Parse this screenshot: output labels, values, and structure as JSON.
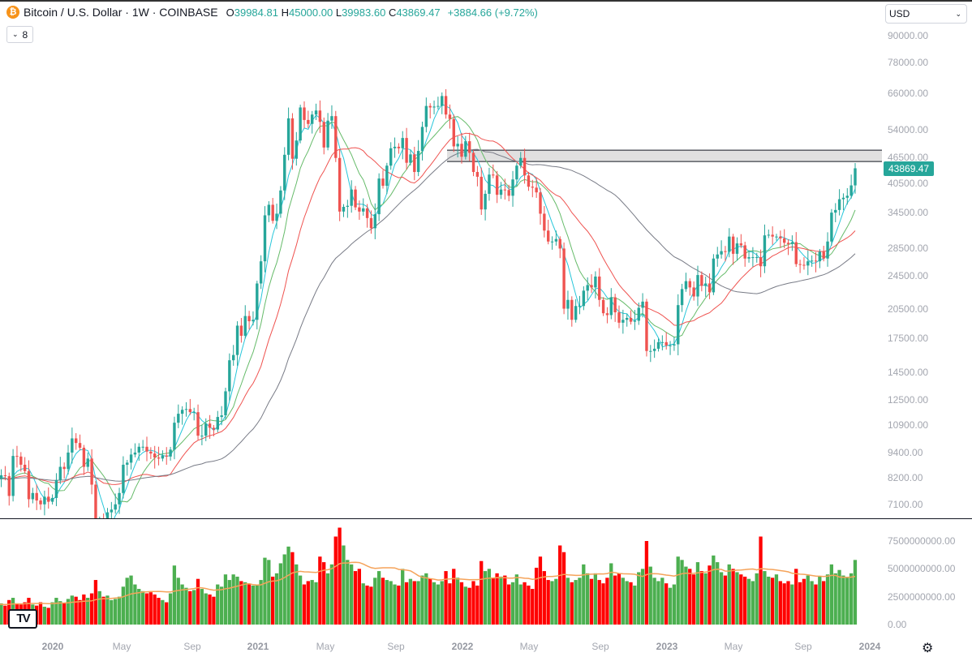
{
  "header": {
    "symbol_title": "Bitcoin / U.S. Dollar · 1W · COINBASE",
    "open_label": "O",
    "open": "39984.81",
    "high_label": "H",
    "high": "45000.00",
    "low_label": "L",
    "low": "39983.60",
    "close_label": "C",
    "close": "43869.47",
    "change": "+3884.66 (+9.72%)",
    "indicator_count": "8",
    "currency": "USD"
  },
  "colors": {
    "up": "#26a69a",
    "down": "#ef5350",
    "vol_up": "#4caf50",
    "vol_down": "#ff0000",
    "ma_colors": [
      "#26c6da",
      "#66bb6a",
      "#ef5350",
      "#787b86"
    ],
    "vol_ma": "#f5a35a",
    "accent": "#26a69a"
  },
  "chart_data": {
    "type": "candlestick",
    "title": "Bitcoin / U.S. Dollar · 1W · COINBASE",
    "scale": "log",
    "ylim": [
      7100,
      90000
    ],
    "price_ticks": [
      "90000.00",
      "78000.00",
      "66000.00",
      "54000.00",
      "46500.00",
      "40500.00",
      "34500.00",
      "28500.00",
      "24500.00",
      "20500.00",
      "17500.00",
      "14500.00",
      "12500.00",
      "10900.00",
      "9400.00",
      "8200.00",
      "7100.00"
    ],
    "last_price": "43869.47",
    "zone": {
      "low": 45500,
      "high": 48400
    },
    "first_open": 8000,
    "closes": [
      8150,
      8310,
      8270,
      7430,
      9230,
      9200,
      8800,
      8500,
      7300,
      7550,
      7250,
      7100,
      7400,
      7200,
      7350,
      8100,
      8700,
      8600,
      9400,
      10150,
      9900,
      9650,
      8700,
      9100,
      7900,
      5400,
      6400,
      6200,
      6800,
      6900,
      7100,
      7550,
      8800,
      8900,
      9300,
      9400,
      9700,
      9700,
      9450,
      9350,
      9150,
      9100,
      9250,
      9200,
      9550,
      11050,
      11600,
      11850,
      11900,
      11700,
      11700,
      10300,
      10300,
      11000,
      10750,
      10650,
      11400,
      11500,
      13100,
      15500,
      15950,
      18700,
      17700,
      19700,
      19150,
      19300,
      23500,
      26500,
      34000,
      36000,
      33000,
      34300,
      38900,
      47200,
      57500,
      46200,
      51000,
      61000,
      57000,
      55800,
      58700,
      60000,
      56400,
      49100,
      56800,
      58200,
      46400,
      34700,
      35600,
      35800,
      39100,
      35500,
      34700,
      35300,
      33500,
      31700,
      34200,
      41500,
      39900,
      44500,
      48900,
      49300,
      48900,
      51700,
      45200,
      47300,
      43000,
      48200,
      54900,
      61500,
      61000,
      61300,
      61500,
      64900,
      58700,
      57300,
      49400,
      50100,
      46700,
      50800,
      47700,
      43000,
      41900,
      35100,
      38200,
      42400,
      42200,
      38000,
      39100,
      39000,
      37800,
      41300,
      44500,
      46400,
      42200,
      39700,
      39500,
      38500,
      34300,
      31300,
      29500,
      29500,
      29900,
      28400,
      20500,
      21500,
      19300,
      20800,
      20800,
      22600,
      23300,
      23000,
      24400,
      21500,
      20000,
      19800,
      21800,
      20100,
      19000,
      19300,
      19500,
      19100,
      19200,
      20600,
      21300,
      16300,
      16300,
      16500,
      17100,
      17100,
      16800,
      16800,
      16900,
      20900,
      22800,
      23800,
      23000,
      21900,
      24600,
      23200,
      23500,
      22400,
      26900,
      27500,
      28000,
      27900,
      30300,
      27600,
      29200,
      28900,
      26900,
      27100,
      27100,
      27100,
      25800,
      30500,
      30600,
      30300,
      30300,
      30000,
      29300,
      29100,
      29400,
      26100,
      26000,
      25900,
      26500,
      26600,
      26500,
      27900,
      26900,
      29500,
      34500,
      35000,
      37100,
      37400,
      37800,
      39984.81,
      43869.47
    ],
    "volume_unit": "billion USD",
    "volumes": [
      1.8,
      1.9,
      1.7,
      2.2,
      2.4,
      1.9,
      1.8,
      2.0,
      2.4,
      1.8,
      1.7,
      2.0,
      1.6,
      1.5,
      2.0,
      2.4,
      2.1,
      1.9,
      2.3,
      2.6,
      2.5,
      2.2,
      2.7,
      2.4,
      2.8,
      4.0,
      3.0,
      2.5,
      2.6,
      2.2,
      2.3,
      2.5,
      3.4,
      4.2,
      4.4,
      3.6,
      3.2,
      3.0,
      2.8,
      2.9,
      2.7,
      2.4,
      2.2,
      2.0,
      2.8,
      5.3,
      4.2,
      3.6,
      3.3,
      3.0,
      3.1,
      4.1,
      3.2,
      2.8,
      2.7,
      2.5,
      3.6,
      3.4,
      4.5,
      4.0,
      4.5,
      4.3,
      3.9,
      3.8,
      3.6,
      3.5,
      3.6,
      4.0,
      6.0,
      5.8,
      4.3,
      4.6,
      5.5,
      6.3,
      7.0,
      6.5,
      5.4,
      4.4,
      3.6,
      3.9,
      4.0,
      3.8,
      6.1,
      5.6,
      4.6,
      5.4,
      7.9,
      8.7,
      7.1,
      5.8,
      5.4,
      4.8,
      5.0,
      3.7,
      3.5,
      3.4,
      4.2,
      4.8,
      4.2,
      4.0,
      3.9,
      3.6,
      3.5,
      5.0,
      3.8,
      4.1,
      3.9,
      3.9,
      4.4,
      4.6,
      4.1,
      3.8,
      3.6,
      3.9,
      4.8,
      3.7,
      5.0,
      4.2,
      3.8,
      3.4,
      3.3,
      3.9,
      3.5,
      5.7,
      4.8,
      5.0,
      4.2,
      4.6,
      4.3,
      4.4,
      3.6,
      3.8,
      4.5,
      3.6,
      3.8,
      3.5,
      3.2,
      5.1,
      6.1,
      4.8,
      4.0,
      3.9,
      4.1,
      7.1,
      6.5,
      4.2,
      3.8,
      4.0,
      4.2,
      5.4,
      4.6,
      4.1,
      4.6,
      4.0,
      3.7,
      4.2,
      5.5,
      4.4,
      4.6,
      4.2,
      3.9,
      3.8,
      3.5,
      4.7,
      5.0,
      7.5,
      5.2,
      4.2,
      3.9,
      4.2,
      3.7,
      3.3,
      3.6,
      6.1,
      5.8,
      5.2,
      5.0,
      4.5,
      5.6,
      4.8,
      4.6,
      5.3,
      6.2,
      5.6,
      4.7,
      4.4,
      5.4,
      5.0,
      4.7,
      4.5,
      4.3,
      4.1,
      3.9,
      4.6,
      7.9,
      4.8,
      4.3,
      4.2,
      4.5,
      3.9,
      3.7,
      3.9,
      3.6,
      5.0,
      3.8,
      4.1,
      4.4,
      3.9,
      3.6,
      4.3,
      3.9,
      4.5,
      5.4,
      4.6,
      4.9,
      4.4,
      4.2,
      4.6,
      5.8
    ],
    "volume_ticks": [
      "7500000000.00",
      "5000000000.00",
      "2500000000.00",
      "0.00"
    ],
    "volume_ylim": [
      0,
      7500000000
    ],
    "time_labels": [
      {
        "t": "2020",
        "year": true
      },
      {
        "t": "May"
      },
      {
        "t": "Sep"
      },
      {
        "t": "2021",
        "year": true
      },
      {
        "t": "May"
      },
      {
        "t": "Sep"
      },
      {
        "t": "2022",
        "year": true
      },
      {
        "t": "May"
      },
      {
        "t": "Sep"
      },
      {
        "t": "2023",
        "year": true
      },
      {
        "t": "May"
      },
      {
        "t": "Sep"
      },
      {
        "t": "2024",
        "year": true
      }
    ]
  }
}
